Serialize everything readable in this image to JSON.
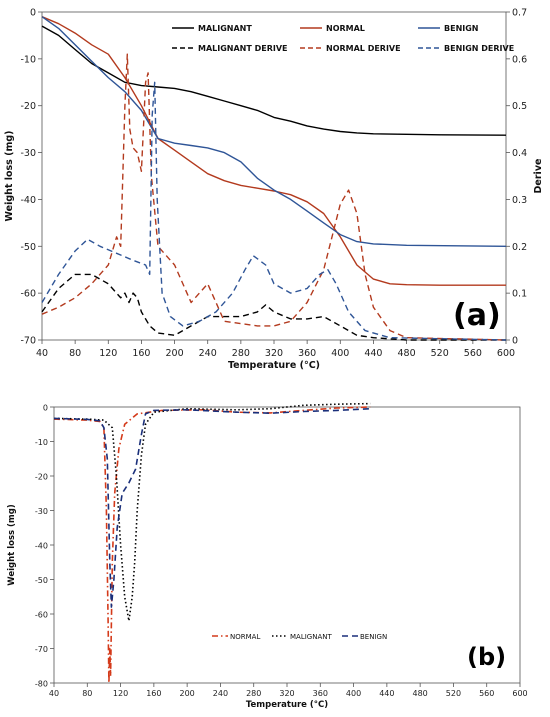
{
  "chart_data": [
    {
      "type": "line",
      "panel_label": "(a)",
      "xlabel": "Temperature (°C)",
      "ylabel": "Weight loss (mg)",
      "y2label": "Derive",
      "xlim": [
        40,
        600
      ],
      "ylim": [
        -70,
        0
      ],
      "y2lim": [
        0,
        0.7
      ],
      "xticks": [
        40,
        80,
        120,
        160,
        200,
        240,
        280,
        320,
        360,
        400,
        440,
        480,
        520,
        560,
        600
      ],
      "yticks": [
        0,
        -10,
        -20,
        -30,
        -40,
        -50,
        -60,
        -70
      ],
      "y2ticks": [
        0,
        0.1,
        0.2,
        0.3,
        0.4,
        0.5,
        0.6,
        0.7
      ],
      "legend": "top",
      "colors": {
        "malignant": "#000000",
        "normal": "#b33a1e",
        "benign": "#2f5597"
      },
      "series": [
        {
          "name": "MALIGNANT",
          "axis": "left",
          "style": "solid",
          "color": "#000000",
          "points": [
            [
              40,
              -3
            ],
            [
              60,
              -5
            ],
            [
              80,
              -8
            ],
            [
              100,
              -11
            ],
            [
              120,
              -13
            ],
            [
              140,
              -15
            ],
            [
              160,
              -15.7
            ],
            [
              180,
              -16
            ],
            [
              200,
              -16.3
            ],
            [
              220,
              -17
            ],
            [
              240,
              -18
            ],
            [
              260,
              -19
            ],
            [
              280,
              -20
            ],
            [
              300,
              -21
            ],
            [
              320,
              -22.5
            ],
            [
              340,
              -23.3
            ],
            [
              360,
              -24.3
            ],
            [
              380,
              -25
            ],
            [
              400,
              -25.5
            ],
            [
              420,
              -25.8
            ],
            [
              440,
              -26
            ],
            [
              480,
              -26.1
            ],
            [
              520,
              -26.2
            ],
            [
              600,
              -26.3
            ]
          ]
        },
        {
          "name": "NORMAL",
          "axis": "left",
          "style": "solid",
          "color": "#b33a1e",
          "points": [
            [
              40,
              -1
            ],
            [
              60,
              -2.5
            ],
            [
              80,
              -4.5
            ],
            [
              100,
              -7
            ],
            [
              120,
              -9
            ],
            [
              140,
              -14
            ],
            [
              160,
              -20
            ],
            [
              180,
              -27
            ],
            [
              200,
              -29.5
            ],
            [
              220,
              -32
            ],
            [
              240,
              -34.5
            ],
            [
              260,
              -36
            ],
            [
              280,
              -37
            ],
            [
              300,
              -37.6
            ],
            [
              320,
              -38.2
            ],
            [
              340,
              -39
            ],
            [
              360,
              -40.5
            ],
            [
              380,
              -43
            ],
            [
              400,
              -48
            ],
            [
              420,
              -54
            ],
            [
              440,
              -57
            ],
            [
              460,
              -58
            ],
            [
              480,
              -58.2
            ],
            [
              520,
              -58.3
            ],
            [
              600,
              -58.3
            ]
          ]
        },
        {
          "name": "BENIGN",
          "axis": "left",
          "style": "solid",
          "color": "#2f5597",
          "points": [
            [
              40,
              -1
            ],
            [
              60,
              -3.5
            ],
            [
              80,
              -7
            ],
            [
              100,
              -10.5
            ],
            [
              120,
              -14
            ],
            [
              140,
              -17
            ],
            [
              160,
              -21
            ],
            [
              170,
              -24
            ],
            [
              180,
              -27
            ],
            [
              200,
              -28
            ],
            [
              220,
              -28.5
            ],
            [
              240,
              -29
            ],
            [
              260,
              -30
            ],
            [
              280,
              -32
            ],
            [
              300,
              -35.5
            ],
            [
              320,
              -38
            ],
            [
              340,
              -40
            ],
            [
              360,
              -42.5
            ],
            [
              380,
              -45
            ],
            [
              400,
              -47.5
            ],
            [
              420,
              -49
            ],
            [
              440,
              -49.5
            ],
            [
              480,
              -49.8
            ],
            [
              600,
              -50
            ]
          ]
        },
        {
          "name": "MALIGNANT DERIVE",
          "axis": "right",
          "style": "dashed",
          "color": "#000000",
          "points": [
            [
              40,
              0.06
            ],
            [
              60,
              0.11
            ],
            [
              80,
              0.14
            ],
            [
              100,
              0.14
            ],
            [
              120,
              0.12
            ],
            [
              135,
              0.09
            ],
            [
              140,
              0.1
            ],
            [
              145,
              0.08
            ],
            [
              150,
              0.1
            ],
            [
              155,
              0.09
            ],
            [
              160,
              0.06
            ],
            [
              170,
              0.03
            ],
            [
              180,
              0.015
            ],
            [
              200,
              0.01
            ],
            [
              220,
              0.03
            ],
            [
              240,
              0.05
            ],
            [
              260,
              0.05
            ],
            [
              280,
              0.05
            ],
            [
              300,
              0.06
            ],
            [
              310,
              0.075
            ],
            [
              320,
              0.06
            ],
            [
              340,
              0.045
            ],
            [
              360,
              0.045
            ],
            [
              380,
              0.05
            ],
            [
              400,
              0.03
            ],
            [
              420,
              0.01
            ],
            [
              440,
              0.005
            ],
            [
              480,
              0
            ],
            [
              600,
              0
            ]
          ]
        },
        {
          "name": "NORMAL DERIVE",
          "axis": "right",
          "style": "dashed",
          "color": "#b33a1e",
          "points": [
            [
              40,
              0.055
            ],
            [
              60,
              0.07
            ],
            [
              80,
              0.09
            ],
            [
              100,
              0.12
            ],
            [
              120,
              0.16
            ],
            [
              130,
              0.22
            ],
            [
              135,
              0.2
            ],
            [
              140,
              0.5
            ],
            [
              143,
              0.61
            ],
            [
              146,
              0.45
            ],
            [
              150,
              0.41
            ],
            [
              155,
              0.4
            ],
            [
              160,
              0.36
            ],
            [
              165,
              0.55
            ],
            [
              168,
              0.57
            ],
            [
              172,
              0.35
            ],
            [
              180,
              0.2
            ],
            [
              200,
              0.16
            ],
            [
              220,
              0.08
            ],
            [
              230,
              0.1
            ],
            [
              240,
              0.12
            ],
            [
              250,
              0.08
            ],
            [
              260,
              0.04
            ],
            [
              280,
              0.035
            ],
            [
              300,
              0.03
            ],
            [
              320,
              0.03
            ],
            [
              340,
              0.04
            ],
            [
              360,
              0.08
            ],
            [
              380,
              0.15
            ],
            [
              400,
              0.29
            ],
            [
              410,
              0.32
            ],
            [
              420,
              0.27
            ],
            [
              430,
              0.14
            ],
            [
              440,
              0.07
            ],
            [
              460,
              0.02
            ],
            [
              480,
              0.005
            ],
            [
              600,
              0
            ]
          ]
        },
        {
          "name": "BENIGN DERIVE",
          "axis": "right",
          "style": "dashed",
          "color": "#2f5597",
          "points": [
            [
              40,
              0.08
            ],
            [
              60,
              0.14
            ],
            [
              80,
              0.19
            ],
            [
              95,
              0.215
            ],
            [
              110,
              0.2
            ],
            [
              130,
              0.185
            ],
            [
              150,
              0.17
            ],
            [
              165,
              0.16
            ],
            [
              170,
              0.14
            ],
            [
              173,
              0.48
            ],
            [
              176,
              0.55
            ],
            [
              179,
              0.3
            ],
            [
              185,
              0.1
            ],
            [
              195,
              0.05
            ],
            [
              210,
              0.03
            ],
            [
              230,
              0.04
            ],
            [
              250,
              0.06
            ],
            [
              270,
              0.1
            ],
            [
              285,
              0.15
            ],
            [
              295,
              0.18
            ],
            [
              310,
              0.16
            ],
            [
              320,
              0.12
            ],
            [
              340,
              0.1
            ],
            [
              360,
              0.11
            ],
            [
              375,
              0.14
            ],
            [
              385,
              0.15
            ],
            [
              395,
              0.12
            ],
            [
              410,
              0.06
            ],
            [
              430,
              0.02
            ],
            [
              460,
              0.005
            ],
            [
              600,
              0
            ]
          ]
        }
      ]
    },
    {
      "type": "line",
      "panel_label": "(b)",
      "xlabel": "Temperature (°C)",
      "ylabel": "Weight loss (mg)",
      "xlim": [
        40,
        600
      ],
      "ylim": [
        -80,
        0
      ],
      "xticks": [
        40,
        80,
        120,
        160,
        200,
        240,
        280,
        320,
        360,
        400,
        440,
        480,
        520,
        560,
        600
      ],
      "yticks": [
        0,
        -10,
        -20,
        -30,
        -40,
        -50,
        -60,
        -70,
        -80
      ],
      "legend": "bottom-center",
      "series": [
        {
          "name": "NORMAL",
          "style": "dashdot",
          "color": "#d43a1a",
          "points": [
            [
              40,
              -3.5
            ],
            [
              80,
              -3.8
            ],
            [
              95,
              -4.2
            ],
            [
              100,
              -6
            ],
            [
              103,
              -30
            ],
            [
              105,
              -62
            ],
            [
              106,
              -80
            ],
            [
              107,
              -70
            ],
            [
              108,
              -78
            ],
            [
              110,
              -45
            ],
            [
              113,
              -25
            ],
            [
              118,
              -12
            ],
            [
              125,
              -5
            ],
            [
              140,
              -2
            ],
            [
              170,
              -1
            ],
            [
              220,
              -0.8
            ],
            [
              260,
              -1.5
            ],
            [
              300,
              -1.7
            ],
            [
              340,
              -1
            ],
            [
              380,
              -0.3
            ],
            [
              420,
              0
            ]
          ]
        },
        {
          "name": "MALIGNANT",
          "style": "dotted",
          "color": "#000000",
          "points": [
            [
              40,
              -3.3
            ],
            [
              80,
              -3.5
            ],
            [
              100,
              -3.8
            ],
            [
              110,
              -6
            ],
            [
              115,
              -20
            ],
            [
              120,
              -40
            ],
            [
              125,
              -55
            ],
            [
              130,
              -62
            ],
            [
              134,
              -55
            ],
            [
              137,
              -45
            ],
            [
              140,
              -30
            ],
            [
              145,
              -14
            ],
            [
              150,
              -5
            ],
            [
              160,
              -1.5
            ],
            [
              200,
              -0.5
            ],
            [
              260,
              -0.8
            ],
            [
              300,
              -0.5
            ],
            [
              340,
              0.5
            ],
            [
              380,
              0.8
            ],
            [
              420,
              1
            ]
          ]
        },
        {
          "name": "BENIGN",
          "style": "dashed",
          "color": "#1a2f7a",
          "points": [
            [
              40,
              -3.3
            ],
            [
              80,
              -3.6
            ],
            [
              95,
              -4
            ],
            [
              100,
              -6
            ],
            [
              104,
              -15
            ],
            [
              107,
              -45
            ],
            [
              109,
              -58
            ],
            [
              112,
              -50
            ],
            [
              116,
              -35
            ],
            [
              122,
              -25
            ],
            [
              130,
              -22
            ],
            [
              138,
              -18
            ],
            [
              145,
              -8
            ],
            [
              150,
              -2
            ],
            [
              160,
              -1
            ],
            [
              200,
              -0.8
            ],
            [
              260,
              -1.5
            ],
            [
              300,
              -1.8
            ],
            [
              340,
              -1.3
            ],
            [
              380,
              -1
            ],
            [
              420,
              -0.5
            ]
          ]
        }
      ]
    }
  ]
}
